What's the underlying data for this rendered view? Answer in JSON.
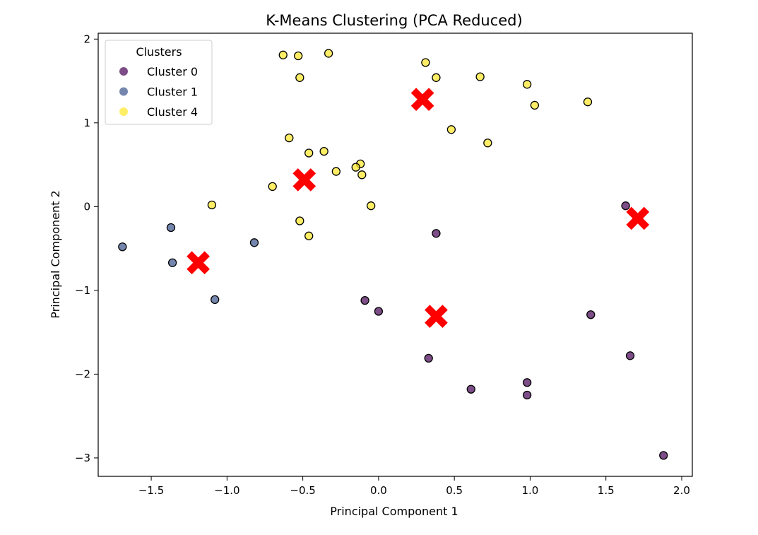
{
  "chart_data": {
    "type": "scatter",
    "title": "K-Means Clustering (PCA Reduced)",
    "xlabel": "Principal Component 1",
    "ylabel": "Principal Component 2",
    "xlim": [
      -1.85,
      2.07
    ],
    "ylim": [
      -3.22,
      2.07
    ],
    "x_ticks": [
      -1.5,
      -1.0,
      -0.5,
      0.0,
      0.5,
      1.0,
      1.5,
      2.0
    ],
    "x_tick_labels": [
      "−1.5",
      "−1.0",
      "−0.5",
      "0.0",
      "0.5",
      "1.0",
      "1.5",
      "2.0"
    ],
    "y_ticks": [
      -3,
      -2,
      -1,
      0,
      1,
      2
    ],
    "y_tick_labels": [
      "−3",
      "−2",
      "−1",
      "0",
      "1",
      "2"
    ],
    "grid": false,
    "legend": {
      "title": "Clusters",
      "placement": "top-left"
    },
    "series": [
      {
        "name": "Cluster 0",
        "color": "#440154",
        "points": [
          [
            1.63,
            0.01
          ],
          [
            0.38,
            -0.32
          ],
          [
            -0.09,
            -1.12
          ],
          [
            0.0,
            -1.25
          ],
          [
            1.4,
            -1.29
          ],
          [
            0.33,
            -1.81
          ],
          [
            1.66,
            -1.78
          ],
          [
            0.61,
            -2.18
          ],
          [
            0.98,
            -2.1
          ],
          [
            0.98,
            -2.25
          ],
          [
            1.88,
            -2.97
          ]
        ]
      },
      {
        "name": "Cluster 1",
        "color": "#3b528b",
        "points": [
          [
            -1.69,
            -0.48
          ],
          [
            -1.37,
            -0.25
          ],
          [
            -1.36,
            -0.67
          ],
          [
            -0.82,
            -0.43
          ],
          [
            -1.08,
            -1.11
          ]
        ]
      },
      {
        "name": "Cluster 4",
        "color": "#fde725",
        "points": [
          [
            -0.63,
            1.81
          ],
          [
            -0.53,
            1.8
          ],
          [
            -0.33,
            1.83
          ],
          [
            -0.52,
            1.54
          ],
          [
            0.31,
            1.72
          ],
          [
            0.38,
            1.54
          ],
          [
            0.67,
            1.55
          ],
          [
            0.98,
            1.46
          ],
          [
            1.03,
            1.21
          ],
          [
            1.38,
            1.25
          ],
          [
            0.48,
            0.92
          ],
          [
            0.72,
            0.76
          ],
          [
            -0.59,
            0.82
          ],
          [
            -0.46,
            0.64
          ],
          [
            -0.36,
            0.66
          ],
          [
            -0.12,
            0.51
          ],
          [
            -0.15,
            0.47
          ],
          [
            -0.28,
            0.42
          ],
          [
            -0.11,
            0.38
          ],
          [
            -0.7,
            0.24
          ],
          [
            -1.1,
            0.02
          ],
          [
            -0.05,
            0.01
          ],
          [
            -0.52,
            -0.17
          ],
          [
            -0.46,
            -0.35
          ]
        ]
      }
    ],
    "centroids": {
      "color": "#ff0000",
      "marker": "X",
      "points": [
        [
          0.29,
          1.28
        ],
        [
          -0.49,
          0.32
        ],
        [
          1.71,
          -0.14
        ],
        [
          -1.19,
          -0.67
        ],
        [
          0.38,
          -1.31
        ]
      ]
    }
  }
}
